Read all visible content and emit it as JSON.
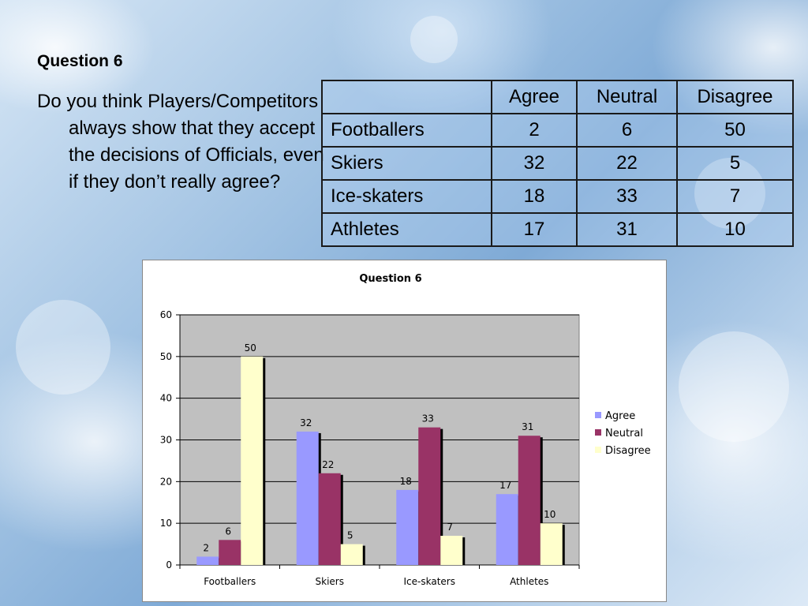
{
  "slide": {
    "title": "Question 6",
    "question": "Do you think Players/Competitors always show that they accept the decisions of Officials, even if they don’t really agree?"
  },
  "table": {
    "headers": [
      "",
      "Agree",
      "Neutral",
      "Disagree"
    ],
    "rows": [
      {
        "label": "Footballers",
        "values": [
          "2",
          "6",
          "50"
        ]
      },
      {
        "label": "Skiers",
        "values": [
          "32",
          "22",
          "5"
        ]
      },
      {
        "label": "Ice-skaters",
        "values": [
          "18",
          "33",
          "7"
        ]
      },
      {
        "label": "Athletes",
        "values": [
          "17",
          "31",
          "10"
        ]
      }
    ]
  },
  "chart_data": {
    "type": "bar",
    "title": "Question 6",
    "categories": [
      "Footballers",
      "Skiers",
      "Ice-skaters",
      "Athletes"
    ],
    "series": [
      {
        "name": "Agree",
        "values": [
          2,
          32,
          18,
          17
        ],
        "color": "#9999ff"
      },
      {
        "name": "Neutral",
        "values": [
          6,
          22,
          33,
          31
        ],
        "color": "#993366"
      },
      {
        "name": "Disagree",
        "values": [
          50,
          5,
          7,
          10
        ],
        "color": "#ffffcc"
      }
    ],
    "ylim": [
      0,
      60
    ],
    "yticks": [
      0,
      10,
      20,
      30,
      40,
      50,
      60
    ],
    "grid": true,
    "legend": "right",
    "plot_background": "#c0c0c0"
  }
}
